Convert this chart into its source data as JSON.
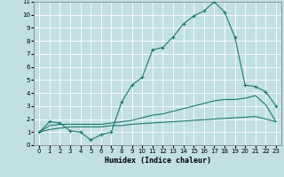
{
  "xlabel": "Humidex (Indice chaleur)",
  "bg_color": "#c2e0e0",
  "grid_color": "#ffffff",
  "line_color": "#1a7a6a",
  "xlim": [
    -0.5,
    23.5
  ],
  "ylim": [
    0,
    11
  ],
  "xticks": [
    0,
    1,
    2,
    3,
    4,
    5,
    6,
    7,
    8,
    9,
    10,
    11,
    12,
    13,
    14,
    15,
    16,
    17,
    18,
    19,
    20,
    21,
    22,
    23
  ],
  "yticks": [
    0,
    1,
    2,
    3,
    4,
    5,
    6,
    7,
    8,
    9,
    10,
    11
  ],
  "series": [
    {
      "x": [
        0,
        1,
        2,
        3,
        4,
        5,
        6,
        7,
        8,
        9,
        10,
        11,
        12,
        13,
        14,
        15,
        16,
        17,
        18,
        19,
        20,
        21,
        22,
        23
      ],
      "y": [
        1,
        1.8,
        1.7,
        1.1,
        1.0,
        0.4,
        0.8,
        1.0,
        3.3,
        4.6,
        5.2,
        7.3,
        7.5,
        8.3,
        9.3,
        9.9,
        10.3,
        11.0,
        10.2,
        8.3,
        4.6,
        4.5,
        4.1,
        3.0
      ],
      "has_marker": true
    },
    {
      "x": [
        0,
        1,
        2,
        3,
        4,
        5,
        6,
        7,
        8,
        9,
        10,
        11,
        12,
        13,
        14,
        15,
        16,
        17,
        18,
        19,
        20,
        21,
        22,
        23
      ],
      "y": [
        1,
        1.5,
        1.6,
        1.6,
        1.6,
        1.6,
        1.6,
        1.7,
        1.8,
        1.9,
        2.1,
        2.3,
        2.4,
        2.6,
        2.8,
        3.0,
        3.2,
        3.4,
        3.5,
        3.5,
        3.6,
        3.8,
        3.1,
        1.8
      ],
      "has_marker": false
    },
    {
      "x": [
        0,
        1,
        2,
        3,
        4,
        5,
        6,
        7,
        8,
        9,
        10,
        11,
        12,
        13,
        14,
        15,
        16,
        17,
        18,
        19,
        20,
        21,
        22,
        23
      ],
      "y": [
        1,
        1.2,
        1.3,
        1.4,
        1.4,
        1.4,
        1.4,
        1.5,
        1.5,
        1.6,
        1.65,
        1.7,
        1.75,
        1.8,
        1.85,
        1.9,
        1.95,
        2.0,
        2.05,
        2.1,
        2.15,
        2.2,
        2.0,
        1.8
      ],
      "has_marker": false
    }
  ]
}
